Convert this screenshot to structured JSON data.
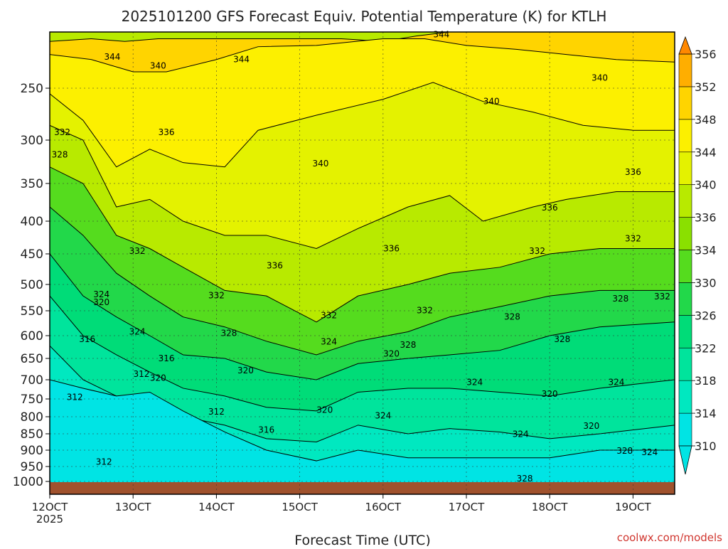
{
  "chart_data": {
    "type": "heatmap",
    "title": "2025101200 GFS Forecast Equiv. Potential Temperature (K) for KTLH",
    "xlabel": "Forecast Time (UTC)",
    "ylabel": "",
    "credit": "coolwx.com/models",
    "x_ticks": [
      "12OCT",
      "13OCT",
      "14OCT",
      "15OCT",
      "16OCT",
      "17OCT",
      "18OCT",
      "19OCT"
    ],
    "x_tick_values": [
      0,
      1,
      2,
      3,
      4,
      5,
      6,
      7
    ],
    "x_first_year": "2025",
    "xlim": [
      0,
      7.5
    ],
    "y_ticks": [
      250,
      300,
      350,
      400,
      450,
      500,
      550,
      600,
      650,
      700,
      750,
      800,
      850,
      900,
      950,
      1000
    ],
    "y_scale": "log",
    "ylim": [
      1020,
      200
    ],
    "y_inverted": true,
    "grid": true,
    "colorbar_ticks": [
      310,
      314,
      318,
      322,
      326,
      330,
      334,
      336,
      340,
      344,
      348,
      352,
      356
    ],
    "colorbar_colors": [
      "#00e4e4",
      "#00e8c0",
      "#00e49c",
      "#00dc78",
      "#22d84a",
      "#55dc1e",
      "#8ae000",
      "#b8ea00",
      "#e4f200",
      "#fcf000",
      "#ffd400",
      "#ffae00",
      "#ff8800"
    ],
    "contour_labels": [
      {
        "text": "344",
        "x": 0.75,
        "p": 224
      },
      {
        "text": "340",
        "x": 1.3,
        "p": 231
      },
      {
        "text": "344",
        "x": 2.3,
        "p": 226
      },
      {
        "text": "344",
        "x": 4.7,
        "p": 207
      },
      {
        "text": "340",
        "x": 5.3,
        "p": 262
      },
      {
        "text": "340",
        "x": 6.6,
        "p": 241
      },
      {
        "text": "332",
        "x": 0.15,
        "p": 292
      },
      {
        "text": "328",
        "x": 0.12,
        "p": 316
      },
      {
        "text": "336",
        "x": 1.4,
        "p": 292
      },
      {
        "text": "340",
        "x": 3.25,
        "p": 326
      },
      {
        "text": "336",
        "x": 7.0,
        "p": 336
      },
      {
        "text": "336",
        "x": 6.0,
        "p": 381
      },
      {
        "text": "332",
        "x": 7.0,
        "p": 425
      },
      {
        "text": "332",
        "x": 1.05,
        "p": 444
      },
      {
        "text": "332",
        "x": 5.85,
        "p": 444
      },
      {
        "text": "336",
        "x": 2.7,
        "p": 467
      },
      {
        "text": "336",
        "x": 4.1,
        "p": 440
      },
      {
        "text": "324",
        "x": 0.62,
        "p": 517
      },
      {
        "text": "332",
        "x": 2.0,
        "p": 519
      },
      {
        "text": "320",
        "x": 0.62,
        "p": 532
      },
      {
        "text": "328",
        "x": 6.85,
        "p": 525
      },
      {
        "text": "332",
        "x": 7.35,
        "p": 521
      },
      {
        "text": "332",
        "x": 4.5,
        "p": 547
      },
      {
        "text": "332",
        "x": 3.35,
        "p": 557
      },
      {
        "text": "328",
        "x": 5.55,
        "p": 560
      },
      {
        "text": "316",
        "x": 0.45,
        "p": 606
      },
      {
        "text": "324",
        "x": 1.05,
        "p": 590
      },
      {
        "text": "328",
        "x": 2.15,
        "p": 593
      },
      {
        "text": "324",
        "x": 3.35,
        "p": 611
      },
      {
        "text": "328",
        "x": 4.3,
        "p": 618
      },
      {
        "text": "328",
        "x": 6.15,
        "p": 606
      },
      {
        "text": "316",
        "x": 1.4,
        "p": 648
      },
      {
        "text": "320",
        "x": 4.1,
        "p": 638
      },
      {
        "text": "320",
        "x": 2.35,
        "p": 676
      },
      {
        "text": "312",
        "x": 1.1,
        "p": 685
      },
      {
        "text": "320",
        "x": 1.3,
        "p": 694
      },
      {
        "text": "324",
        "x": 5.1,
        "p": 705
      },
      {
        "text": "324",
        "x": 6.8,
        "p": 705
      },
      {
        "text": "312",
        "x": 0.3,
        "p": 743
      },
      {
        "text": "320",
        "x": 6.0,
        "p": 735
      },
      {
        "text": "312",
        "x": 2.0,
        "p": 782
      },
      {
        "text": "320",
        "x": 3.3,
        "p": 777
      },
      {
        "text": "324",
        "x": 4.0,
        "p": 793
      },
      {
        "text": "316",
        "x": 2.6,
        "p": 834
      },
      {
        "text": "320",
        "x": 6.5,
        "p": 822
      },
      {
        "text": "324",
        "x": 5.65,
        "p": 846
      },
      {
        "text": "328",
        "x": 6.9,
        "p": 898
      },
      {
        "text": "324",
        "x": 7.2,
        "p": 902
      },
      {
        "text": "312",
        "x": 0.65,
        "p": 933
      },
      {
        "text": "328",
        "x": 5.7,
        "p": 990
      }
    ],
    "bands": [
      [
        [
          0,
          212
        ],
        [
          0.5,
          210
        ],
        [
          0.9,
          212
        ],
        [
          1.3,
          210
        ],
        [
          2.0,
          210
        ],
        [
          2.9,
          210
        ],
        [
          3.5,
          210
        ],
        [
          4.0,
          212
        ],
        [
          4.4,
          208
        ],
        [
          4.8,
          205
        ],
        [
          5.5,
          205
        ],
        [
          6.5,
          205
        ],
        [
          7.5,
          205
        ]
      ],
      [
        [
          0,
          222
        ],
        [
          0.5,
          226
        ],
        [
          1.0,
          236
        ],
        [
          1.4,
          236
        ],
        [
          2.0,
          226
        ],
        [
          2.5,
          216
        ],
        [
          3.2,
          215
        ],
        [
          4.0,
          210
        ],
        [
          4.5,
          210
        ],
        [
          5.0,
          215
        ],
        [
          5.6,
          218
        ],
        [
          6.2,
          222
        ],
        [
          6.8,
          226
        ],
        [
          7.5,
          228
        ]
      ],
      [
        [
          0,
          255
        ],
        [
          0.4,
          280
        ],
        [
          0.8,
          330
        ],
        [
          1.2,
          310
        ],
        [
          1.6,
          325
        ],
        [
          2.1,
          330
        ],
        [
          2.5,
          290
        ],
        [
          3.2,
          275
        ],
        [
          4.0,
          260
        ],
        [
          4.6,
          245
        ],
        [
          5.2,
          262
        ],
        [
          5.8,
          272
        ],
        [
          6.4,
          285
        ],
        [
          7.0,
          290
        ],
        [
          7.5,
          290
        ]
      ],
      [
        [
          0,
          285
        ],
        [
          0.4,
          300
        ],
        [
          0.8,
          380
        ],
        [
          1.2,
          370
        ],
        [
          1.6,
          400
        ],
        [
          2.1,
          420
        ],
        [
          2.6,
          420
        ],
        [
          3.2,
          440
        ],
        [
          3.7,
          410
        ],
        [
          4.3,
          380
        ],
        [
          4.8,
          365
        ],
        [
          5.2,
          400
        ],
        [
          5.8,
          380
        ],
        [
          6.2,
          370
        ],
        [
          6.8,
          360
        ],
        [
          7.5,
          360
        ]
      ],
      [
        [
          0,
          330
        ],
        [
          0.4,
          350
        ],
        [
          0.8,
          420
        ],
        [
          1.2,
          440
        ],
        [
          1.6,
          470
        ],
        [
          2.1,
          510
        ],
        [
          2.6,
          520
        ],
        [
          3.2,
          570
        ],
        [
          3.7,
          520
        ],
        [
          4.3,
          500
        ],
        [
          4.8,
          480
        ],
        [
          5.4,
          470
        ],
        [
          6.0,
          450
        ],
        [
          6.6,
          440
        ],
        [
          7.5,
          440
        ]
      ],
      [
        [
          0,
          380
        ],
        [
          0.4,
          420
        ],
        [
          0.8,
          480
        ],
        [
          1.2,
          520
        ],
        [
          1.6,
          560
        ],
        [
          2.1,
          580
        ],
        [
          2.6,
          610
        ],
        [
          3.2,
          640
        ],
        [
          3.7,
          610
        ],
        [
          4.3,
          590
        ],
        [
          4.8,
          560
        ],
        [
          5.4,
          540
        ],
        [
          6.0,
          520
        ],
        [
          6.6,
          510
        ],
        [
          7.5,
          510
        ]
      ],
      [
        [
          0,
          450
        ],
        [
          0.4,
          520
        ],
        [
          0.8,
          560
        ],
        [
          1.2,
          600
        ],
        [
          1.6,
          640
        ],
        [
          2.1,
          650
        ],
        [
          2.6,
          680
        ],
        [
          3.2,
          700
        ],
        [
          3.7,
          660
        ],
        [
          4.3,
          650
        ],
        [
          4.8,
          640
        ],
        [
          5.4,
          630
        ],
        [
          6.0,
          600
        ],
        [
          6.6,
          580
        ],
        [
          7.5,
          570
        ]
      ],
      [
        [
          0,
          520
        ],
        [
          0.4,
          600
        ],
        [
          0.8,
          640
        ],
        [
          1.2,
          680
        ],
        [
          1.6,
          720
        ],
        [
          2.1,
          740
        ],
        [
          2.6,
          770
        ],
        [
          3.2,
          780
        ],
        [
          3.7,
          730
        ],
        [
          4.3,
          720
        ],
        [
          4.8,
          720
        ],
        [
          5.4,
          730
        ],
        [
          6.0,
          740
        ],
        [
          6.6,
          720
        ],
        [
          7.5,
          700
        ]
      ],
      [
        [
          0,
          620
        ],
        [
          0.4,
          700
        ],
        [
          0.8,
          740
        ],
        [
          1.2,
          760
        ],
        [
          1.6,
          800
        ],
        [
          2.1,
          820
        ],
        [
          2.6,
          860
        ],
        [
          3.2,
          870
        ],
        [
          3.7,
          820
        ],
        [
          4.3,
          850
        ],
        [
          4.8,
          830
        ],
        [
          5.4,
          840
        ],
        [
          6.0,
          860
        ],
        [
          6.6,
          850
        ],
        [
          7.5,
          820
        ]
      ],
      [
        [
          0,
          700
        ],
        [
          0.4,
          720
        ],
        [
          0.8,
          740
        ],
        [
          1.2,
          730
        ],
        [
          1.6,
          780
        ],
        [
          2.1,
          840
        ],
        [
          2.6,
          900
        ],
        [
          3.2,
          930
        ],
        [
          3.7,
          900
        ],
        [
          4.3,
          920
        ],
        [
          4.8,
          920
        ],
        [
          5.4,
          920
        ],
        [
          6.0,
          920
        ],
        [
          6.6,
          900
        ],
        [
          7.5,
          900
        ]
      ]
    ],
    "band_levels": [
      348,
      344,
      340,
      336,
      332,
      328,
      324,
      320,
      316,
      312
    ],
    "ground_color": "#a0522d"
  }
}
